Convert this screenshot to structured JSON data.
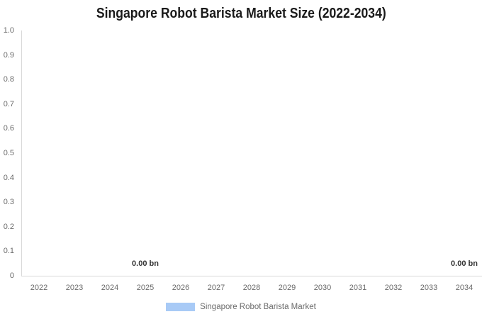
{
  "chart_data": {
    "type": "area",
    "title": "Singapore Robot Barista Market Size (2022-2034)",
    "x": [
      2022,
      2023,
      2024,
      2025,
      2026,
      2027,
      2028,
      2029,
      2030,
      2031,
      2032,
      2033,
      2034
    ],
    "series": [
      {
        "name": "Singapore Robot Barista Market",
        "color": "#A8CAF6",
        "unit": "bn",
        "values": [
          0.0,
          0.0,
          0.0,
          0.0,
          0.0,
          0.0,
          0.0,
          0.0,
          0.0,
          0.0,
          0.0,
          0.0,
          0.0
        ]
      }
    ],
    "data_labels": [
      {
        "text": "0.00 bn",
        "x": 2025
      },
      {
        "text": "0.00 bn",
        "x": 2034
      }
    ],
    "xlabel": "",
    "ylabel": "",
    "ylim": [
      0,
      1.0
    ],
    "yticks": [
      "1.0",
      "0.9",
      "0.8",
      "0.7",
      "0.6",
      "0.5",
      "0.4",
      "0.3",
      "0.2",
      "0.1",
      "0"
    ],
    "xticks": [
      "2022",
      "2023",
      "2024",
      "2025",
      "2026",
      "2027",
      "2028",
      "2029",
      "2030",
      "2031",
      "2032",
      "2033",
      "2034"
    ],
    "grid": false,
    "legend_position": "bottom"
  },
  "colors": {
    "series_fill": "#A8CAF6",
    "axis_line": "#D9D9D9",
    "tick_text": "#6B6B6B",
    "data_label_text": "#333333",
    "title_text": "#1A1A1A"
  }
}
